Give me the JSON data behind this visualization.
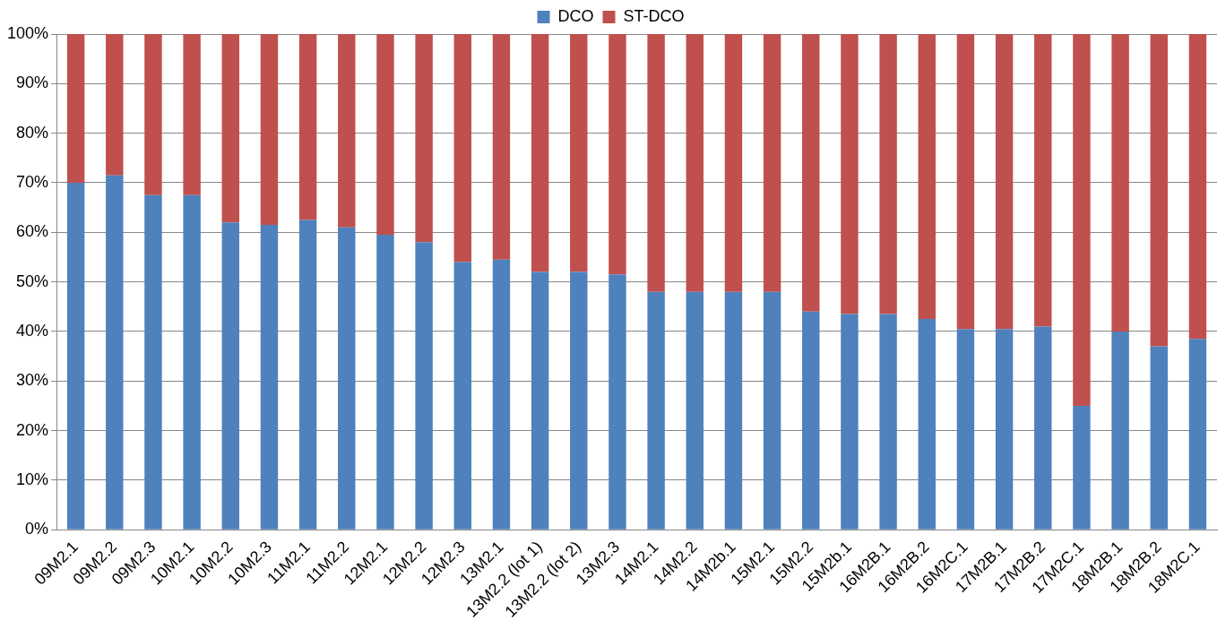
{
  "chart_data": {
    "type": "bar",
    "stacked": true,
    "categories": [
      "09M2.1",
      "09M2.2",
      "09M2.3",
      "10M2.1",
      "10M2.2",
      "10M2.3",
      "11M2.1",
      "11M2.2",
      "12M2.1",
      "12M2.2",
      "12M2.3",
      "13M2.1",
      "13M2.2 (lot 1)",
      "13M2.2 (lot 2)",
      "13M2.3",
      "14M2.1",
      "14M2.2",
      "14M2b.1",
      "15M2.1",
      "15M2.2",
      "15M2b.1",
      "16M2B.1",
      "16M2B.2",
      "16M2C.1",
      "17M2B.1",
      "17M2B.2",
      "17M2C.1",
      "18M2B.1",
      "18M2B.2",
      "18M2C.1"
    ],
    "series": [
      {
        "name": "DCO",
        "color": "#4f81bd",
        "values": [
          70,
          71.5,
          67.5,
          67.5,
          62,
          61.5,
          62.5,
          61,
          59.5,
          58,
          54,
          54.5,
          52,
          52,
          51.5,
          48,
          48,
          48,
          48,
          44,
          43.5,
          43.5,
          42.5,
          40.5,
          40.5,
          41,
          25,
          40,
          37,
          38.5
        ]
      },
      {
        "name": "ST-DCO",
        "color": "#c0504d",
        "values": [
          30,
          28.5,
          32.5,
          32.5,
          38,
          38.5,
          37.5,
          39,
          40.5,
          42,
          46,
          45.5,
          48,
          48,
          48.5,
          52,
          52,
          52,
          52,
          56,
          56.5,
          56.5,
          57.5,
          59.5,
          59.5,
          59,
          75,
          60,
          63,
          61.5
        ]
      }
    ],
    "ylim": [
      0,
      100
    ],
    "yticks": [
      {
        "value": 0,
        "label": "0%"
      },
      {
        "value": 10,
        "label": "10%"
      },
      {
        "value": 20,
        "label": "20%"
      },
      {
        "value": 30,
        "label": "30%"
      },
      {
        "value": 40,
        "label": "40%"
      },
      {
        "value": 50,
        "label": "50%"
      },
      {
        "value": 60,
        "label": "60%"
      },
      {
        "value": 70,
        "label": "70%"
      },
      {
        "value": 80,
        "label": "80%"
      },
      {
        "value": 90,
        "label": "90%"
      },
      {
        "value": 100,
        "label": "100%"
      }
    ],
    "grid": "y",
    "legend": "top"
  }
}
